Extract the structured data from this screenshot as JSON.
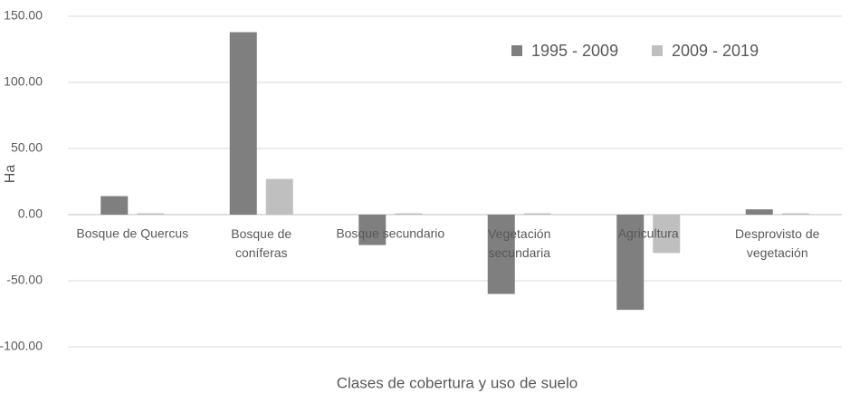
{
  "chart_data": {
    "type": "bar",
    "x_label": "Clases de cobertura y uso de suelo",
    "y_label": "Ha",
    "categories": [
      "Bosque de Quercus",
      "Bosque de coníferas",
      "Bosque secundario",
      "Vegetación secundaria",
      "Agricultura",
      "Desprovisto de vegetación"
    ],
    "series": [
      {
        "name": "1995 - 2009",
        "color": "#7f7f7f",
        "values": [
          14,
          138,
          -23,
          -60,
          -72,
          4
        ]
      },
      {
        "name": "2009 - 2019",
        "color": "#bfbfbf",
        "values": [
          1,
          27,
          1,
          1,
          -29,
          1
        ]
      }
    ],
    "ylim": [
      -100,
      150
    ],
    "yticks": [
      {
        "value": -100,
        "label": "-100.00"
      },
      {
        "value": -50,
        "label": "-50.00"
      },
      {
        "value": 0,
        "label": "0.00"
      },
      {
        "value": 50,
        "label": "50.00"
      },
      {
        "value": 100,
        "label": "100.00"
      },
      {
        "value": 150,
        "label": "150.00"
      }
    ],
    "grid": true,
    "legend": "top-right"
  }
}
